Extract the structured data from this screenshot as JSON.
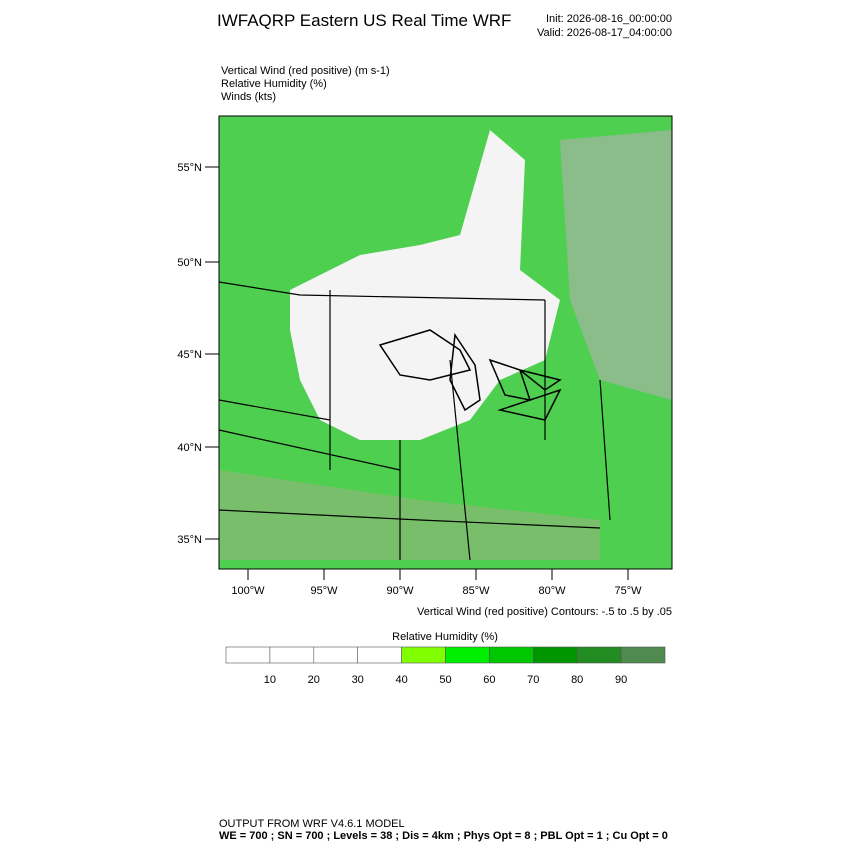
{
  "header": {
    "title": "IWFAQRP Eastern US Real Time WRF",
    "init": "Init: 2026-08-16_00:00:00",
    "valid": "Valid: 2026-08-17_04:00:00"
  },
  "fields": [
    "Vertical Wind (red positive)   (m s-1)",
    "Relative Humidity   (%)",
    "Winds   (kts)"
  ],
  "map": {
    "lat_labels": [
      "55°N",
      "50°N",
      "45°N",
      "40°N",
      "35°N"
    ],
    "lon_labels": [
      "100°W",
      "95°W",
      "90°W",
      "85°W",
      "80°W",
      "75°W"
    ]
  },
  "contour_note": "Vertical Wind (red positive) Contours: -.5 to .5 by .05",
  "colorbar": {
    "title": "Relative Humidity  (%)",
    "labels": [
      "10",
      "20",
      "30",
      "40",
      "50",
      "60",
      "70",
      "80",
      "90"
    ],
    "colors": [
      "#ffffff",
      "#ffffff",
      "#ffffff",
      "#ffffff",
      "#80ff00",
      "#00ee00",
      "#00c800",
      "#009600",
      "#228b22",
      "#4f8a4f"
    ]
  },
  "footer": [
    "OUTPUT FROM WRF V4.6.1 MODEL",
    "WE = 700 ; SN = 700 ; Levels = 38 ; Dis = 4km ; Phys Opt = 8 ; PBL Opt = 1 ; Cu Opt = 0"
  ]
}
